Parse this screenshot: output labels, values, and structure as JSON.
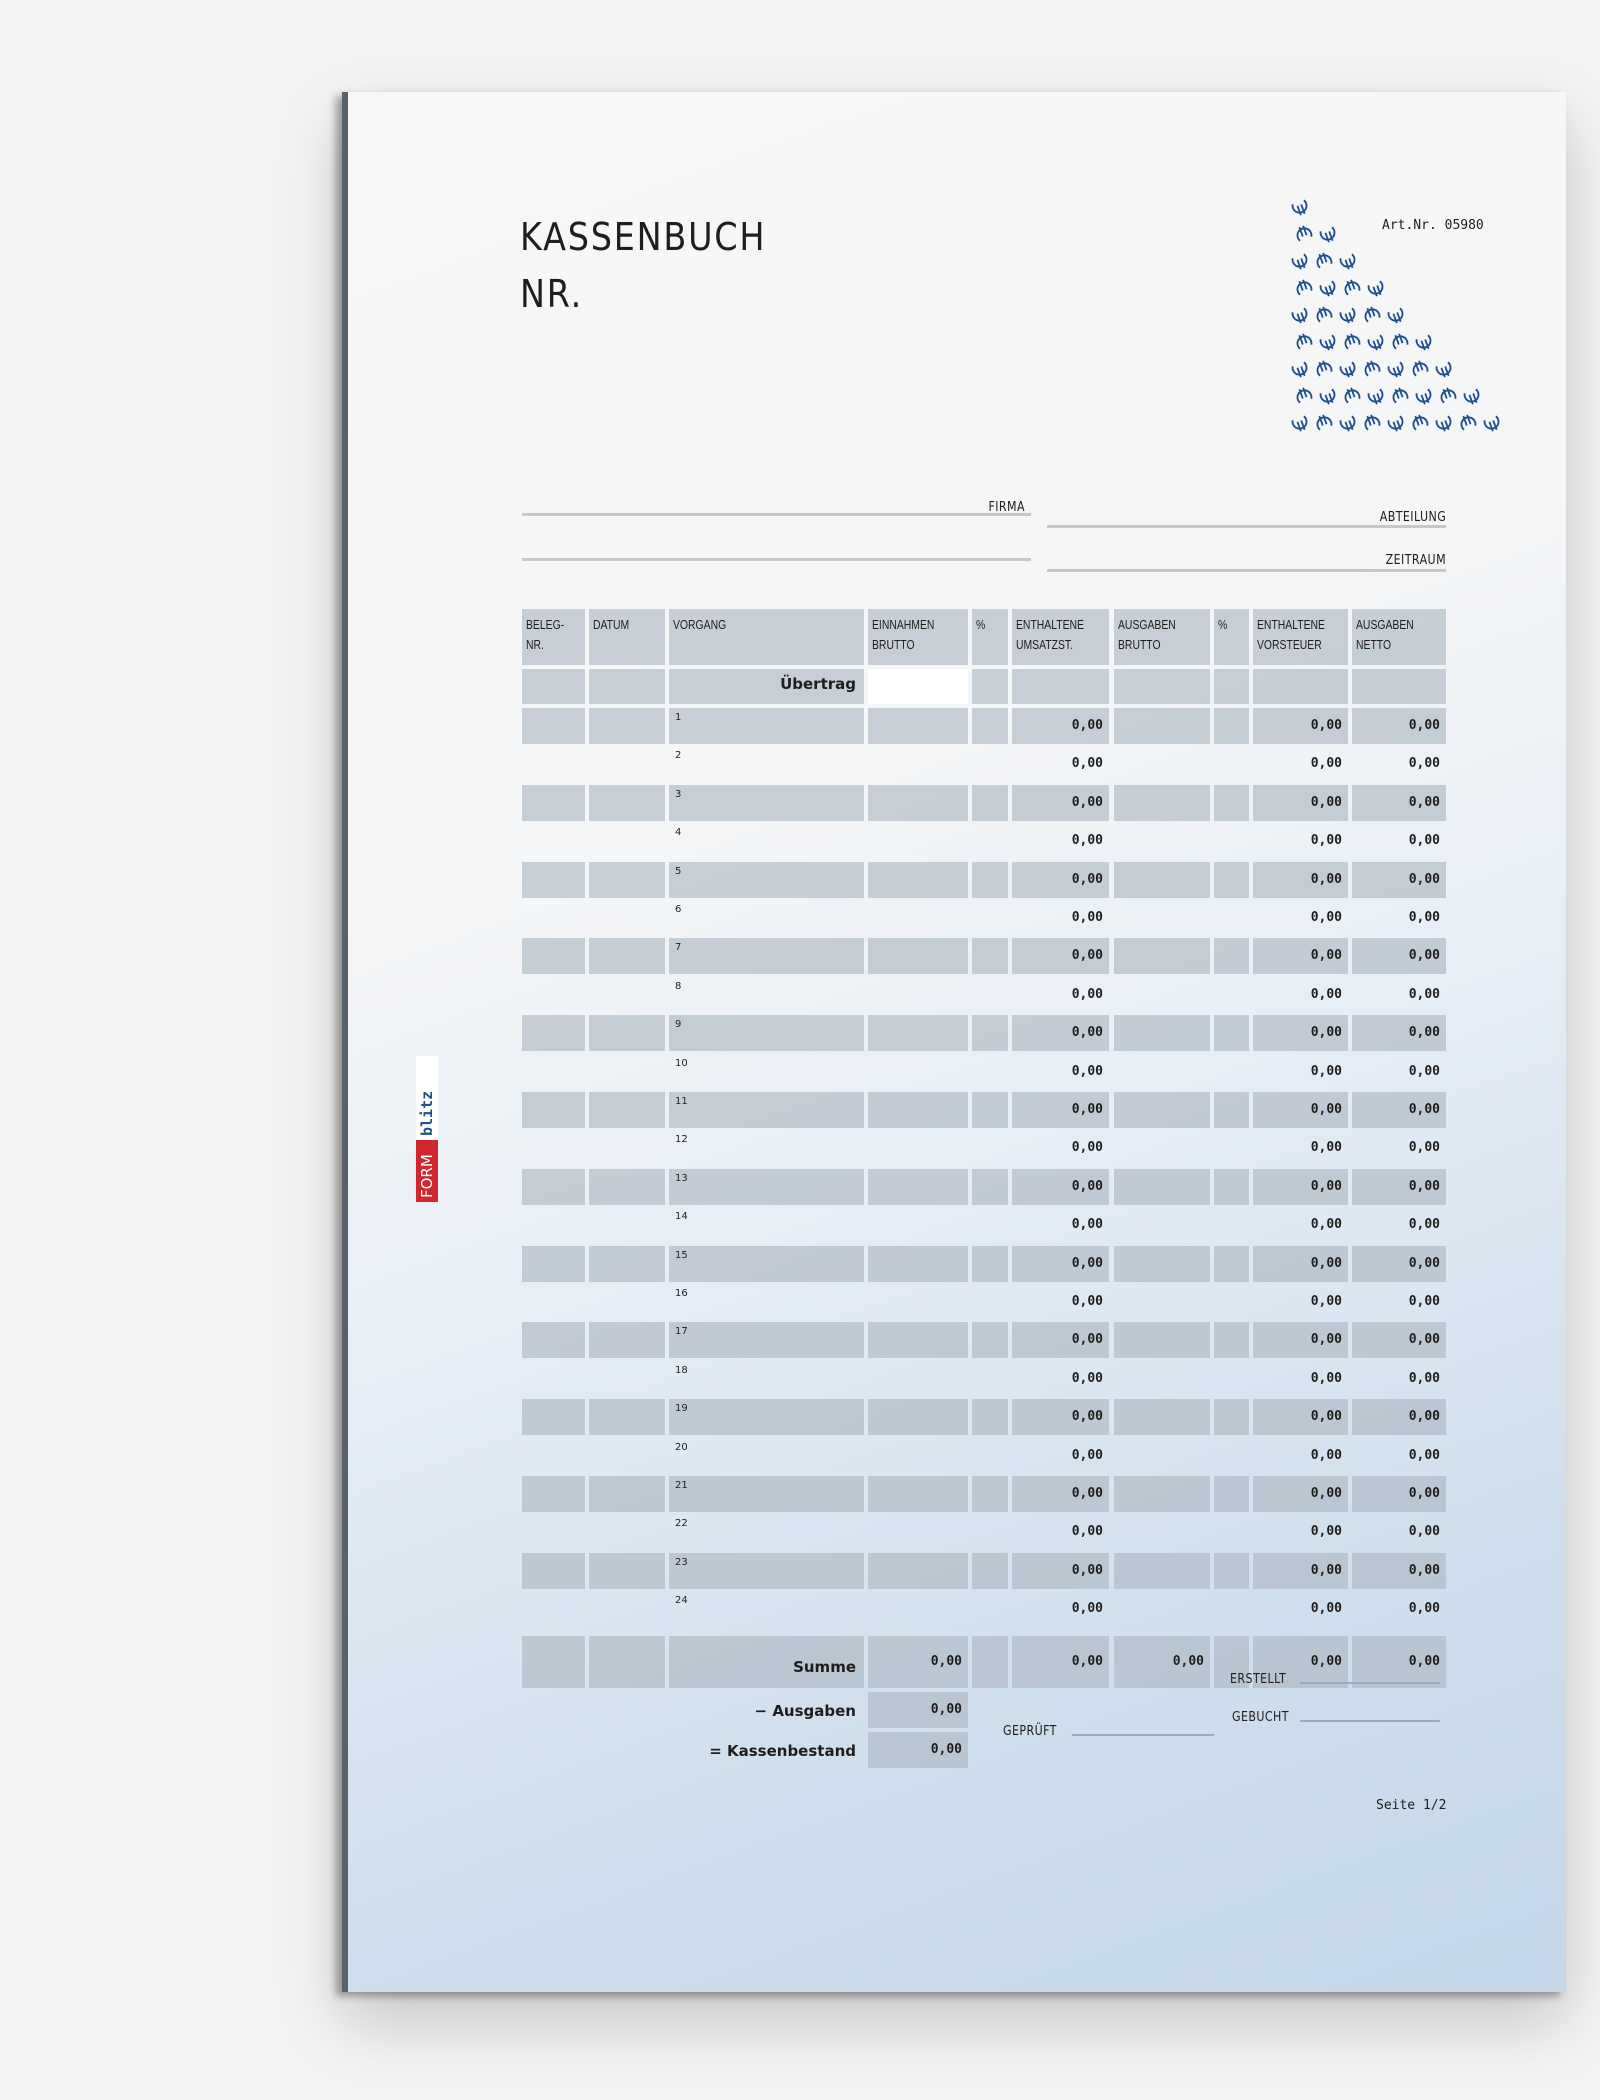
{
  "document": {
    "title_line1": "KASSENBUCH",
    "title_line2": "NR.",
    "art_nr": "Art.Nr. 05980",
    "page": "Seite 1/2",
    "logo_text": "FORMblitz"
  },
  "fields": {
    "firma": "FIRMA",
    "abteilung": "ABTEILUNG",
    "zeitraum": "ZEITRAUM"
  },
  "table": {
    "headers": [
      "BELEG-\nNR.",
      "DATUM",
      "VORGANG",
      "EINNAHMEN\nBRUTTO",
      "%",
      "ENTHALTENE\nUMSATZST.",
      "AUSGABEN\nBRUTTO",
      "%",
      "ENTHALTENE\nVORSTEUER",
      "AUSGABEN\nNETTO"
    ],
    "uebertrag": "Übertrag",
    "rows": [
      {
        "nr": "1",
        "ust": "0,00",
        "vorsteuer": "0,00",
        "netto": "0,00"
      },
      {
        "nr": "2",
        "ust": "0,00",
        "vorsteuer": "0,00",
        "netto": "0,00"
      },
      {
        "nr": "3",
        "ust": "0,00",
        "vorsteuer": "0,00",
        "netto": "0,00"
      },
      {
        "nr": "4",
        "ust": "0,00",
        "vorsteuer": "0,00",
        "netto": "0,00"
      },
      {
        "nr": "5",
        "ust": "0,00",
        "vorsteuer": "0,00",
        "netto": "0,00"
      },
      {
        "nr": "6",
        "ust": "0,00",
        "vorsteuer": "0,00",
        "netto": "0,00"
      },
      {
        "nr": "7",
        "ust": "0,00",
        "vorsteuer": "0,00",
        "netto": "0,00"
      },
      {
        "nr": "8",
        "ust": "0,00",
        "vorsteuer": "0,00",
        "netto": "0,00"
      },
      {
        "nr": "9",
        "ust": "0,00",
        "vorsteuer": "0,00",
        "netto": "0,00"
      },
      {
        "nr": "10",
        "ust": "0,00",
        "vorsteuer": "0,00",
        "netto": "0,00"
      },
      {
        "nr": "11",
        "ust": "0,00",
        "vorsteuer": "0,00",
        "netto": "0,00"
      },
      {
        "nr": "12",
        "ust": "0,00",
        "vorsteuer": "0,00",
        "netto": "0,00"
      },
      {
        "nr": "13",
        "ust": "0,00",
        "vorsteuer": "0,00",
        "netto": "0,00"
      },
      {
        "nr": "14",
        "ust": "0,00",
        "vorsteuer": "0,00",
        "netto": "0,00"
      },
      {
        "nr": "15",
        "ust": "0,00",
        "vorsteuer": "0,00",
        "netto": "0,00"
      },
      {
        "nr": "16",
        "ust": "0,00",
        "vorsteuer": "0,00",
        "netto": "0,00"
      },
      {
        "nr": "17",
        "ust": "0,00",
        "vorsteuer": "0,00",
        "netto": "0,00"
      },
      {
        "nr": "18",
        "ust": "0,00",
        "vorsteuer": "0,00",
        "netto": "0,00"
      },
      {
        "nr": "19",
        "ust": "0,00",
        "vorsteuer": "0,00",
        "netto": "0,00"
      },
      {
        "nr": "20",
        "ust": "0,00",
        "vorsteuer": "0,00",
        "netto": "0,00"
      },
      {
        "nr": "21",
        "ust": "0,00",
        "vorsteuer": "0,00",
        "netto": "0,00"
      },
      {
        "nr": "22",
        "ust": "0,00",
        "vorsteuer": "0,00",
        "netto": "0,00"
      },
      {
        "nr": "23",
        "ust": "0,00",
        "vorsteuer": "0,00",
        "netto": "0,00"
      },
      {
        "nr": "24",
        "ust": "0,00",
        "vorsteuer": "0,00",
        "netto": "0,00"
      }
    ],
    "summe": {
      "label": "Summe",
      "einnahmen": "0,00",
      "ust": "0,00",
      "ausgaben": "0,00",
      "vorsteuer": "0,00",
      "netto": "0,00"
    },
    "minus_ausgaben": {
      "label": "− Ausgaben",
      "value": "0,00"
    },
    "kassenbestand": {
      "label": "= Kassenbestand",
      "value": "0,00"
    }
  },
  "signatures": {
    "erstellt": "ERSTELLT",
    "gebucht": "GEBUCHT",
    "geprueft": "GEPRÜFT"
  },
  "colors": {
    "logo_red": "#d0262d",
    "logo_blue": "#1d4f8a",
    "euro_blue": "#1d4f8a",
    "cell_gray": "#b4bec8"
  }
}
